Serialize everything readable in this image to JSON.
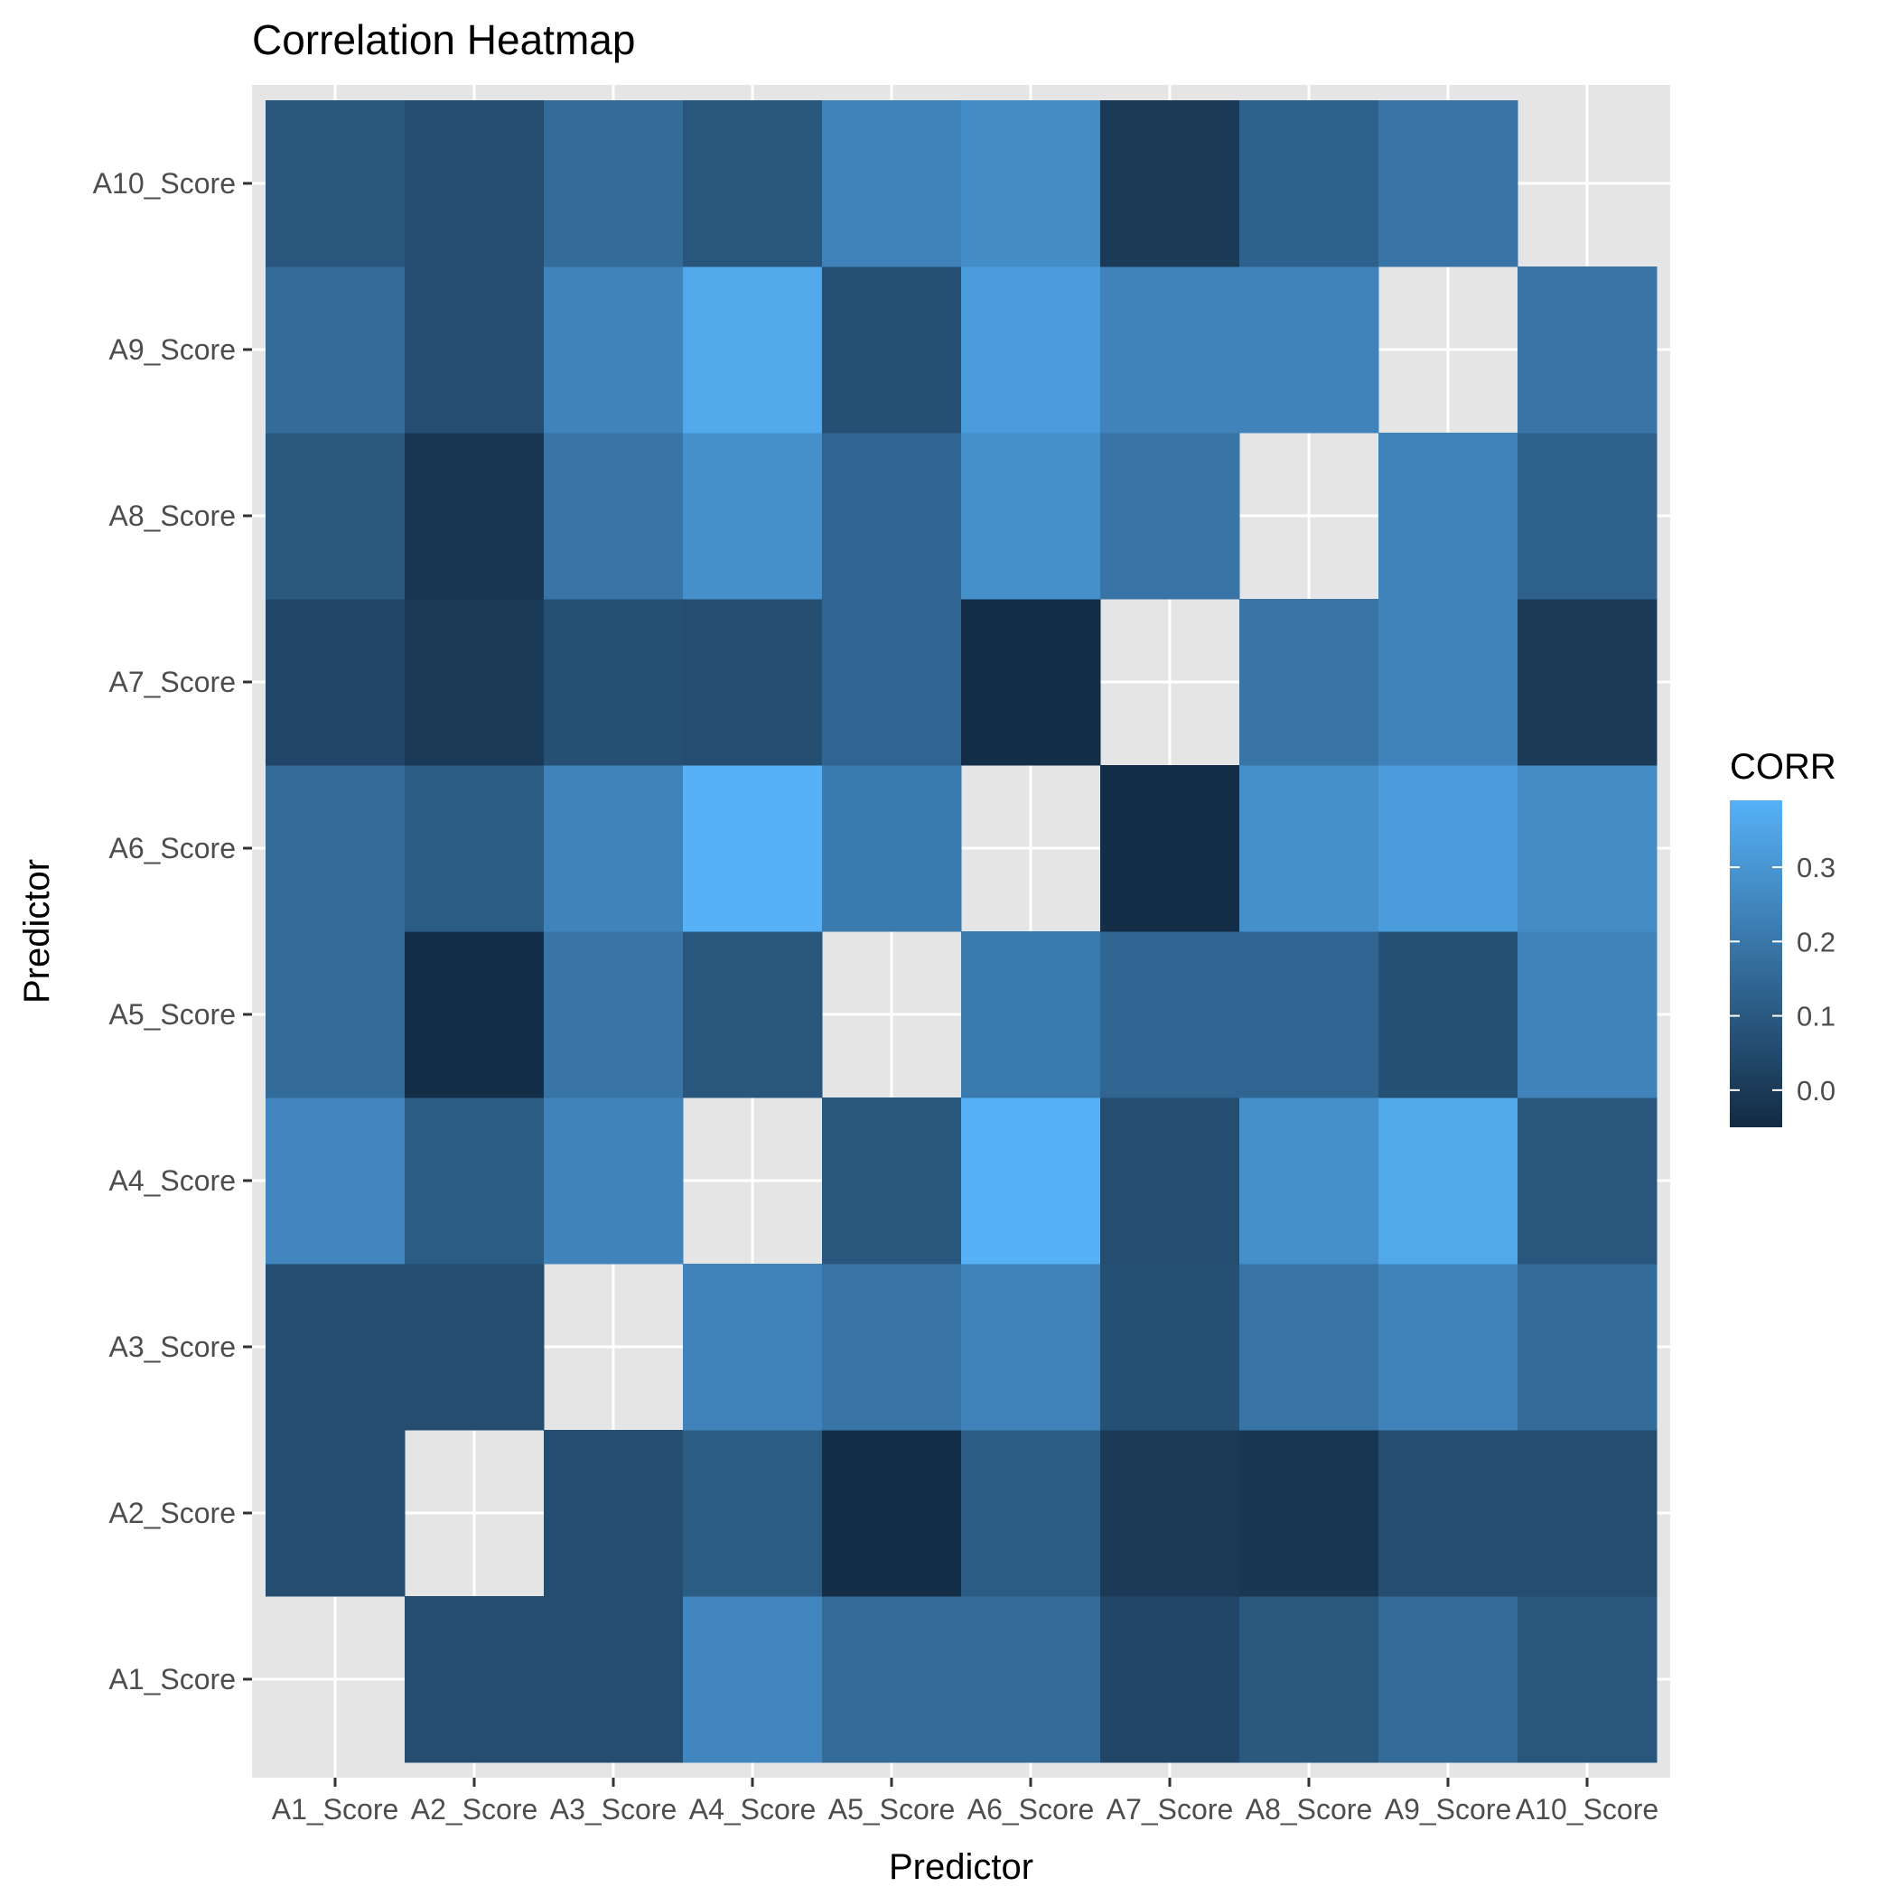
{
  "chart_data": {
    "type": "heatmap",
    "title": "Correlation Heatmap",
    "xlabel": "Predictor",
    "ylabel": "Predictor",
    "x_categories": [
      "A1_Score",
      "A2_Score",
      "A3_Score",
      "A4_Score",
      "A5_Score",
      "A6_Score",
      "A7_Score",
      "A8_Score",
      "A9_Score",
      "A10_Score"
    ],
    "y_categories": [
      "A1_Score",
      "A2_Score",
      "A3_Score",
      "A4_Score",
      "A5_Score",
      "A6_Score",
      "A7_Score",
      "A8_Score",
      "A9_Score",
      "A10_Score"
    ],
    "values": [
      [
        null,
        0.06,
        0.06,
        0.25,
        0.16,
        0.16,
        0.04,
        0.1,
        0.16,
        0.09
      ],
      [
        0.06,
        null,
        0.06,
        0.11,
        -0.04,
        0.11,
        0.0,
        -0.01,
        0.06,
        0.06
      ],
      [
        0.06,
        0.06,
        null,
        0.24,
        0.19,
        0.24,
        0.07,
        0.19,
        0.24,
        0.16
      ],
      [
        0.25,
        0.11,
        0.24,
        null,
        0.09,
        0.39,
        0.06,
        0.28,
        0.36,
        0.09
      ],
      [
        0.16,
        -0.04,
        0.19,
        0.09,
        null,
        0.21,
        0.14,
        0.14,
        0.07,
        0.24
      ],
      [
        0.16,
        0.11,
        0.24,
        0.39,
        0.21,
        null,
        -0.04,
        0.28,
        0.32,
        0.27
      ],
      [
        0.04,
        0.0,
        0.07,
        0.06,
        0.14,
        -0.04,
        null,
        0.19,
        0.24,
        0.0
      ],
      [
        0.1,
        -0.01,
        0.19,
        0.28,
        0.14,
        0.28,
        0.19,
        null,
        0.24,
        0.13
      ],
      [
        0.16,
        0.06,
        0.24,
        0.36,
        0.07,
        0.32,
        0.24,
        0.24,
        null,
        0.19
      ],
      [
        0.09,
        0.06,
        0.16,
        0.09,
        0.24,
        0.27,
        0.0,
        0.13,
        0.19,
        null
      ]
    ],
    "value_range": [
      -0.05,
      0.39
    ],
    "color_low": "#132B43",
    "color_high": "#56B1F7",
    "panel_background": "#E5E5E5",
    "grid": true,
    "legend": {
      "title": "CORR",
      "position": "right",
      "breaks": [
        0.0,
        0.1,
        0.2,
        0.3
      ],
      "labels": [
        "0.0",
        "0.1",
        "0.2",
        "0.3"
      ]
    }
  }
}
